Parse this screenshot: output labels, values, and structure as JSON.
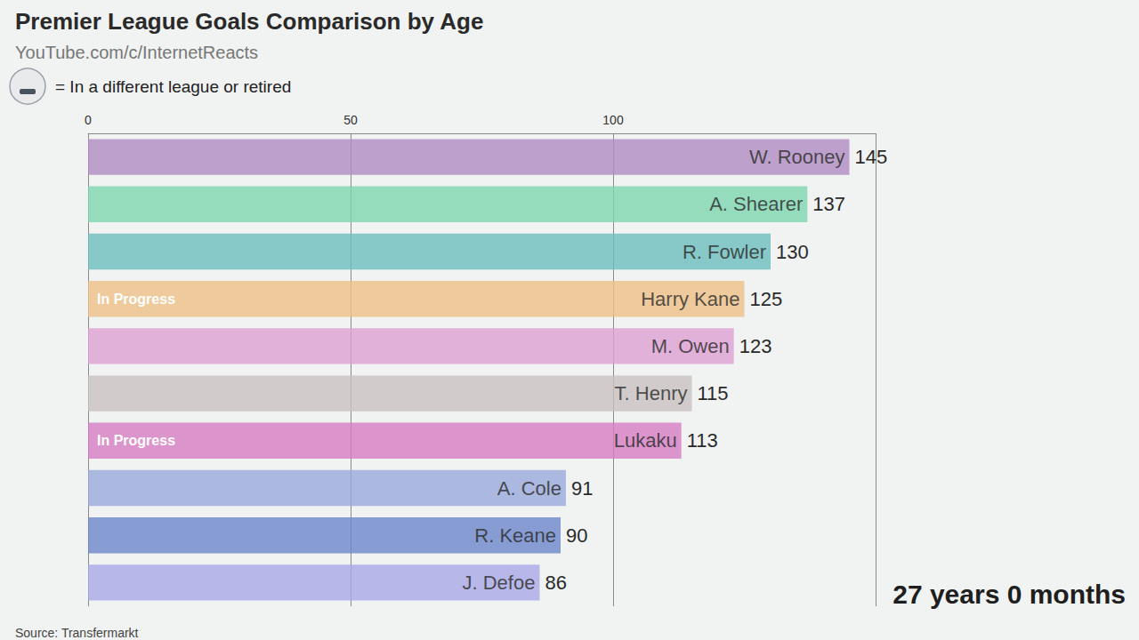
{
  "chart_data": {
    "type": "bar",
    "orientation": "horizontal",
    "title": "Premier League Goals Comparison by Age",
    "subtitle": "YouTube.com/c/InternetReacts",
    "note": "= In a different league or retired",
    "source": "Source: Transfermarkt",
    "period_label": "27 years 0 months",
    "categories": [
      "W. Rooney",
      "A. Shearer",
      "R. Fowler",
      "Harry Kane",
      "M. Owen",
      "T. Henry",
      "Lukaku",
      "A. Cole",
      "R. Keane",
      "J. Defoe"
    ],
    "values": [
      145,
      137,
      130,
      125,
      123,
      115,
      113,
      91,
      90,
      86
    ],
    "colors": [
      "#b08cc2",
      "#7dd6ae",
      "#6dbdbd",
      "#eebf86",
      "#dea0d3",
      "#c9c1c1",
      "#d77cc2",
      "#9aa9da",
      "#6b86c9",
      "#a9a8e6"
    ],
    "annotations": [
      {
        "category": "Harry Kane",
        "text": "In Progress"
      },
      {
        "category": "Lukaku",
        "text": "In Progress"
      }
    ],
    "xlim": [
      0,
      150
    ],
    "xticks": [
      0,
      50,
      100
    ],
    "grid": true,
    "data_labels": true,
    "tick_labels": "x"
  }
}
